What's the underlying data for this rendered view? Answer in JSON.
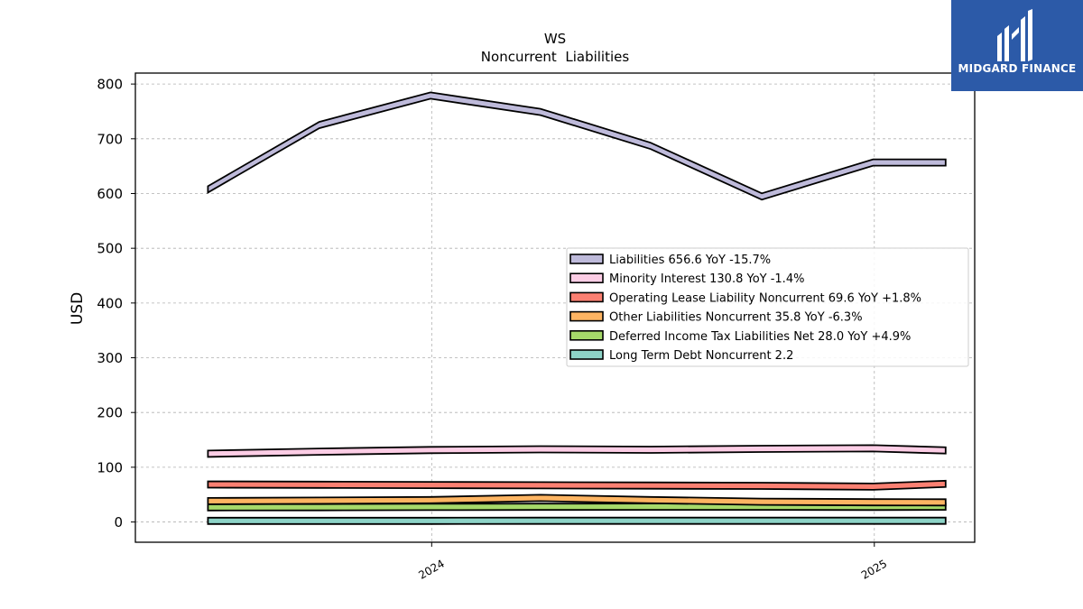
{
  "brand": {
    "name": "MIDGARD FINANCE",
    "logo_icon": "midgard-mh-logo-icon",
    "bg": "#2c5aa8"
  },
  "chart_data": {
    "type": "area",
    "title": "WS",
    "subtitle": "Noncurrent  Liabilities",
    "ylabel": "USD",
    "xlabel": "",
    "ylim": [
      -37,
      820
    ],
    "yticks": [
      0,
      100,
      200,
      300,
      400,
      500,
      600,
      700,
      800
    ],
    "xlim": [
      "2023-05-01",
      "2025-03-25"
    ],
    "xticks": [
      {
        "label": "2024",
        "date": "2024-01-01"
      },
      {
        "label": "2025",
        "date": "2025-01-01"
      }
    ],
    "grid": true,
    "legend_position": "center-right",
    "x": [
      "2023-06-30",
      "2023-09-30",
      "2023-12-31",
      "2024-03-31",
      "2024-06-30",
      "2024-09-30",
      "2024-12-31",
      "2025-03-01"
    ],
    "series": [
      {
        "name": "Long Term Debt Noncurrent",
        "legend": "Long Term Debt Noncurrent  2.2",
        "color": "#8dd3c7",
        "values": [
          2.1,
          2.1,
          2.1,
          2.2,
          2.2,
          2.2,
          2.2,
          2.2
        ]
      },
      {
        "name": "Deferred Income Tax Liabilities Net",
        "legend": "Deferred Income Tax Liabilities Net  28.0 YoY +4.9%",
        "color": "#a6d96a",
        "values": [
          26.7,
          27.0,
          27.5,
          27.8,
          28.0,
          27.9,
          27.6,
          28.0
        ]
      },
      {
        "name": "Other Liabilities Noncurrent",
        "legend": "Other Liabilities Noncurrent  35.8 YoY -6.3%",
        "color": "#fdb462",
        "values": [
          38.2,
          39.0,
          40.0,
          44.0,
          40.0,
          37.0,
          36.0,
          35.8
        ]
      },
      {
        "name": "Operating Lease Liability Noncurrent",
        "legend": "Operating Lease Liability Noncurrent  69.6 YoY +1.8%",
        "color": "#fb8072",
        "values": [
          68.4,
          68.0,
          67.5,
          67.0,
          66.5,
          66.0,
          64.5,
          69.6
        ]
      },
      {
        "name": "Minority Interest",
        "legend": "Minority Interest  130.8 YoY -1.4%",
        "color": "#fccde5",
        "values": [
          124.6,
          128.5,
          131.5,
          132.7,
          132.0,
          133.5,
          134.5,
          130.8
        ]
      },
      {
        "name": "Liabilities",
        "legend": "Liabilities  656.6 YoY -15.7%",
        "color": "#bebada",
        "values": [
          607.5,
          725.0,
          779.0,
          749.0,
          687.0,
          594.5,
          656.6,
          656.6
        ]
      }
    ]
  }
}
